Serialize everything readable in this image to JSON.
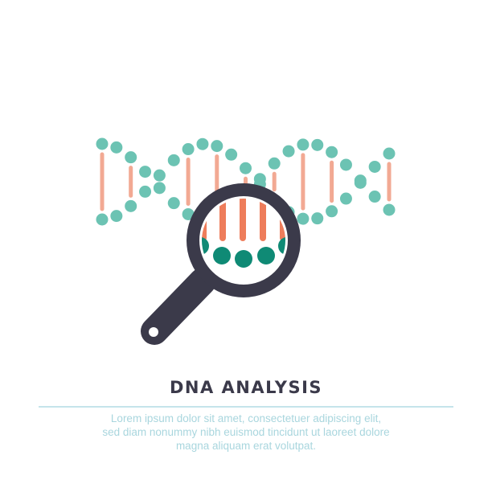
{
  "title": "DNA ANALYSIS",
  "description": {
    "line1": "Lorem ipsum dolor sit amet, consectetuer adipiscing elit,",
    "line2": "sed diam nonummy nibh euismod tincidunt ut laoreet dolore",
    "line3": "magna aliquam erat volutpat."
  },
  "icons": {
    "dna": "dna-helix-icon",
    "magnifier": "magnifying-glass-icon"
  },
  "colors": {
    "teal": "#6cc3b3",
    "teal_dark": "#0f8a75",
    "salmon": "#f2a993",
    "orange": "#ee7d5b",
    "dark": "#3b3a4a",
    "divider": "#c5e4eb",
    "description": "#a9d6de"
  }
}
